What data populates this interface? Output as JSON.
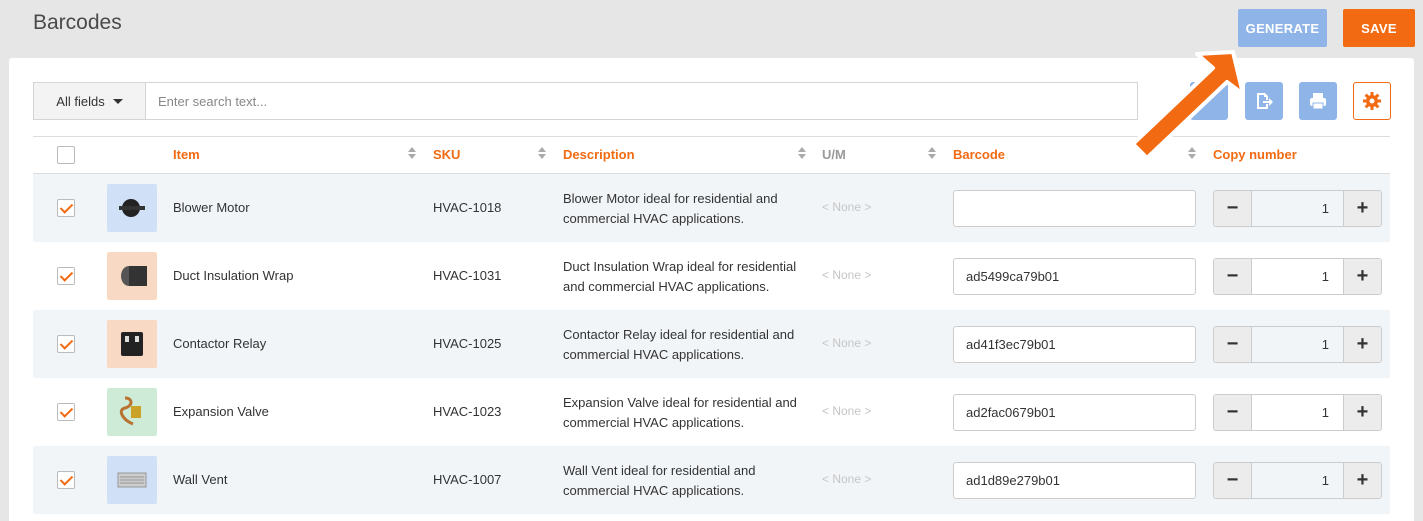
{
  "header": {
    "title": "Barcodes",
    "generate_label": "GENERATE",
    "save_label": "SAVE"
  },
  "toolbar": {
    "field_select": "All fields",
    "search_placeholder": "Enter search text..."
  },
  "columns": {
    "item": "Item",
    "sku": "SKU",
    "description": "Description",
    "um": "U/M",
    "barcode": "Barcode",
    "copy_number": "Copy number"
  },
  "rows": [
    {
      "name": "Blower Motor",
      "sku": "HVAC-1018",
      "description": "Blower Motor ideal for residential and commercial HVAC applications.",
      "um": "< None >",
      "barcode": "",
      "copies": "1",
      "checked": true,
      "thumb_color": "#cfe0f7"
    },
    {
      "name": "Duct Insulation Wrap",
      "sku": "HVAC-1031",
      "description": "Duct Insulation Wrap ideal for residential and commercial HVAC applications.",
      "um": "< None >",
      "barcode": "ad5499ca79b01",
      "copies": "1",
      "checked": true,
      "thumb_color": "#f8d9c4"
    },
    {
      "name": "Contactor Relay",
      "sku": "HVAC-1025",
      "description": "Contactor Relay ideal for residential and commercial HVAC applications.",
      "um": "< None >",
      "barcode": "ad41f3ec79b01",
      "copies": "1",
      "checked": true,
      "thumb_color": "#f8d9c4"
    },
    {
      "name": "Expansion Valve",
      "sku": "HVAC-1023",
      "description": "Expansion Valve ideal for residential and commercial HVAC applications.",
      "um": "< None >",
      "barcode": "ad2fac0679b01",
      "copies": "1",
      "checked": true,
      "thumb_color": "#cdebd6"
    },
    {
      "name": "Wall Vent",
      "sku": "HVAC-1007",
      "description": "Wall Vent ideal for residential and commercial HVAC applications.",
      "um": "< None >",
      "barcode": "ad1d89e279b01",
      "copies": "1",
      "checked": true,
      "thumb_color": "#cfe0f7"
    }
  ],
  "icons": {
    "export": "export-icon",
    "print": "print-icon",
    "settings": "gear-icon",
    "step_minus": "minus-icon",
    "step_plus": "plus-icon"
  },
  "colors": {
    "accent": "#f26a12",
    "blue_button": "#8fb4e8"
  },
  "step": {
    "minus": "−",
    "plus": "+"
  }
}
